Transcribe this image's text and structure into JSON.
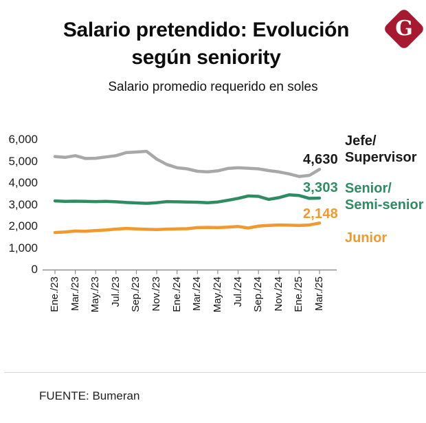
{
  "header": {
    "title_line1": "Salario pretendido: Evolución",
    "title_line2": "según seniority",
    "subtitle": "Salario promedio requerido en soles",
    "logo_letter": "G",
    "logo_color": "#A6192E"
  },
  "chart_data": {
    "type": "line",
    "title": "Salario pretendido: Evolución según seniority",
    "subtitle": "Salario promedio requerido en soles",
    "xlabel": "",
    "ylabel": "",
    "unit": "soles",
    "ylim": [
      0,
      6000
    ],
    "grid": false,
    "legend_position": "right",
    "y_tick_values": [
      0,
      1000,
      2000,
      3000,
      4000,
      5000,
      6000
    ],
    "y_tick_labels": [
      "0",
      "1,000",
      "2,000",
      "3,000",
      "4,000",
      "5,000",
      "6,000"
    ],
    "x_range": "Ene./23 - Mar./25 (mensual, 27 puntos)",
    "x_tick_labels": [
      "Ene./23",
      "Mar./23",
      "May./23",
      "Jul./23",
      "Sep./23",
      "Nov./23",
      "Ene./24",
      "Mar./24",
      "May./24",
      "Jul./24",
      "Sep./24",
      "Nov./24",
      "Ene./25",
      "Mar./25"
    ],
    "series": [
      {
        "name": "Jefe/Supervisor",
        "legend_lines": [
          "Jefe/",
          "Supervisor"
        ],
        "color": "#A8A8A8",
        "label_color": "#1A1A1A",
        "end_label": "4,630",
        "end_value": 4630,
        "values": [
          5220,
          5180,
          5260,
          5130,
          5140,
          5200,
          5260,
          5400,
          5430,
          5460,
          5100,
          4850,
          4700,
          4650,
          4540,
          4510,
          4560,
          4670,
          4700,
          4680,
          4650,
          4570,
          4510,
          4420,
          4300,
          4350,
          4630
        ]
      },
      {
        "name": "Senior/Semi-senior",
        "legend_lines": [
          "Senior/",
          "Semi-senior"
        ],
        "color": "#2E8C62",
        "label_color": "#2E8C62",
        "end_label": "3,303",
        "end_value": 3303,
        "values": [
          3170,
          3150,
          3160,
          3150,
          3140,
          3150,
          3130,
          3100,
          3080,
          3060,
          3090,
          3140,
          3130,
          3120,
          3110,
          3090,
          3120,
          3200,
          3290,
          3400,
          3380,
          3240,
          3320,
          3450,
          3420,
          3290,
          3303
        ]
      },
      {
        "name": "Junior",
        "legend_lines": [
          "Junior"
        ],
        "color": "#F2992E",
        "label_color": "#F2992E",
        "end_label": "2,148",
        "end_value": 2148,
        "values": [
          1710,
          1740,
          1780,
          1770,
          1800,
          1830,
          1870,
          1900,
          1880,
          1860,
          1850,
          1870,
          1880,
          1890,
          1940,
          1950,
          1940,
          1960,
          1990,
          1920,
          2010,
          2040,
          2060,
          2050,
          2040,
          2060,
          2148
        ]
      }
    ]
  },
  "footer": {
    "source": "FUENTE: Bumeran"
  }
}
